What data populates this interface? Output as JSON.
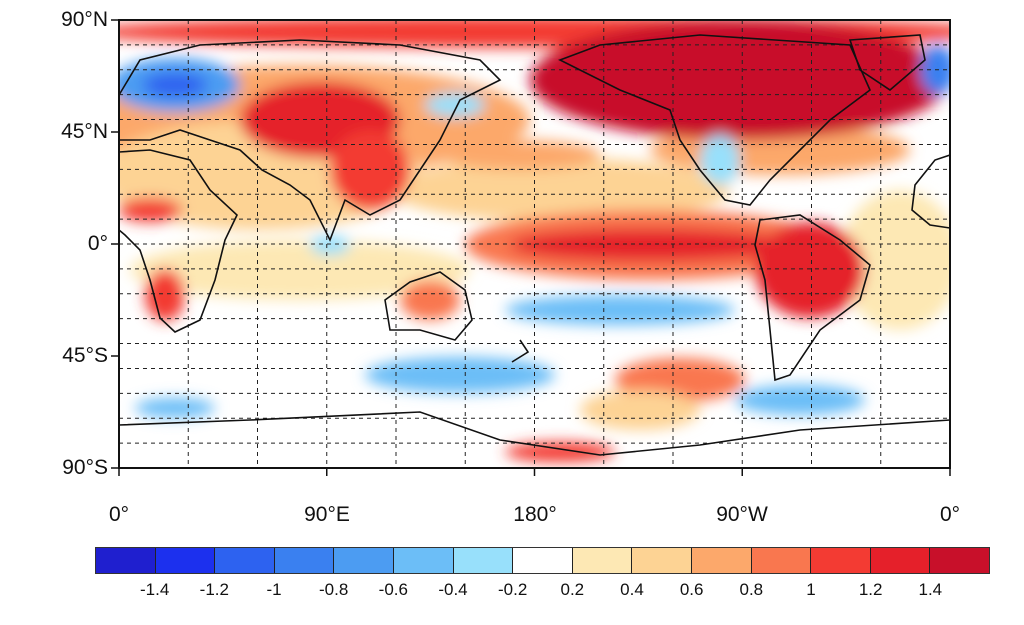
{
  "map": {
    "projection": "cylindrical equidistant",
    "lat_labels": [
      "90°N",
      "45°N",
      "0°",
      "45°S",
      "90°S"
    ],
    "lon_labels": [
      "0°",
      "90°E",
      "180°",
      "90°W",
      "0°"
    ],
    "grid": "dashed, 30° longitude x 10° latitude"
  },
  "colorbar": {
    "labels": [
      "-1.4",
      "-1.2",
      "-1",
      "-0.8",
      "-0.6",
      "-0.4",
      "-0.2",
      "0.2",
      "0.4",
      "0.6",
      "0.8",
      "1",
      "1.2",
      "1.4"
    ],
    "colors": [
      "#1f1fcf",
      "#1c30ee",
      "#2d62f0",
      "#3a80f0",
      "#4c9cf2",
      "#6cbef7",
      "#98e0fb",
      "#ffffff",
      "#fde8b4",
      "#fdd394",
      "#fca86b",
      "#f9774f",
      "#f33b33",
      "#e5202a",
      "#c8102a"
    ]
  }
}
